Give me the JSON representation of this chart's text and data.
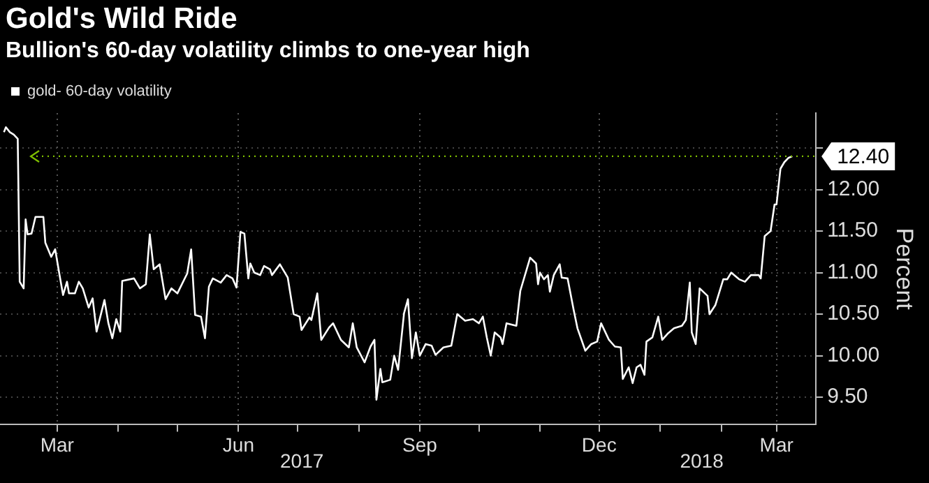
{
  "chart_data": {
    "type": "line",
    "title": "Gold's Wild Ride",
    "subtitle": "Bullion's 60-day volatility climbs to one-year high",
    "ylabel": "Percent",
    "x": [
      "2017-02-02",
      "2017-02-03",
      "2017-02-05",
      "2017-02-07",
      "2017-02-09",
      "2017-02-10",
      "2017-02-12",
      "2017-02-13",
      "2017-02-14",
      "2017-02-16",
      "2017-02-18",
      "2017-02-22",
      "2017-02-23",
      "2017-02-26",
      "2017-02-28",
      "2017-03-02",
      "2017-03-04",
      "2017-03-06",
      "2017-03-07",
      "2017-03-10",
      "2017-03-12",
      "2017-03-14",
      "2017-03-17",
      "2017-03-19",
      "2017-03-21",
      "2017-03-25",
      "2017-03-27",
      "2017-03-29",
      "2017-03-31",
      "2017-04-02",
      "2017-04-03",
      "2017-04-09",
      "2017-04-12",
      "2017-04-15",
      "2017-04-17",
      "2017-04-19",
      "2017-04-22",
      "2017-04-25",
      "2017-04-28",
      "2017-05-01",
      "2017-05-06",
      "2017-05-08",
      "2017-05-10",
      "2017-05-13",
      "2017-05-15",
      "2017-05-17",
      "2017-05-19",
      "2017-05-23",
      "2017-05-26",
      "2017-05-29",
      "2017-05-31",
      "2017-06-02",
      "2017-06-04",
      "2017-06-06",
      "2017-06-07",
      "2017-06-09",
      "2017-06-12",
      "2017-06-14",
      "2017-06-17",
      "2017-06-18",
      "2017-06-22",
      "2017-06-26",
      "2017-06-29",
      "2017-07-02",
      "2017-07-03",
      "2017-07-07",
      "2017-07-08",
      "2017-07-11",
      "2017-07-13",
      "2017-07-17",
      "2017-07-19",
      "2017-07-23",
      "2017-07-27",
      "2017-07-29",
      "2017-07-31",
      "2017-08-04",
      "2017-08-07",
      "2017-08-09",
      "2017-08-10",
      "2017-08-12",
      "2017-08-13",
      "2017-08-17",
      "2017-08-19",
      "2017-08-21",
      "2017-08-24",
      "2017-08-26",
      "2017-08-28",
      "2017-08-30",
      "2017-09-01",
      "2017-09-04",
      "2017-09-07",
      "2017-09-09",
      "2017-09-13",
      "2017-09-17",
      "2017-09-20",
      "2017-09-24",
      "2017-09-28",
      "2017-10-01",
      "2017-10-03",
      "2017-10-05",
      "2017-10-07",
      "2017-10-09",
      "2017-10-12",
      "2017-10-13",
      "2017-10-15",
      "2017-10-20",
      "2017-10-22",
      "2017-10-27",
      "2017-10-30",
      "2017-10-31",
      "2017-11-01",
      "2017-11-03",
      "2017-11-05",
      "2017-11-06",
      "2017-11-08",
      "2017-11-11",
      "2017-11-12",
      "2017-11-15",
      "2017-11-18",
      "2017-11-20",
      "2017-11-24",
      "2017-11-27",
      "2017-11-30",
      "2017-12-02",
      "2017-12-06",
      "2017-12-09",
      "2017-12-12",
      "2017-12-13",
      "2017-12-16",
      "2017-12-18",
      "2017-12-20",
      "2017-12-22",
      "2017-12-24",
      "2017-12-25",
      "2017-12-28",
      "2017-12-31",
      "2018-01-02",
      "2018-01-05",
      "2018-01-08",
      "2018-01-12",
      "2018-01-14",
      "2018-01-16",
      "2018-01-17",
      "2018-01-19",
      "2018-01-21",
      "2018-01-25",
      "2018-01-26",
      "2018-01-29",
      "2018-02-02",
      "2018-02-04",
      "2018-02-06",
      "2018-02-10",
      "2018-02-13",
      "2018-02-16",
      "2018-02-20",
      "2018-02-21",
      "2018-02-23",
      "2018-02-26",
      "2018-02-28",
      "2018-03-01",
      "2018-03-03",
      "2018-03-05",
      "2018-03-07",
      "2018-03-09"
    ],
    "series": [
      {
        "name": "gold- 60-day volatility",
        "color": "#ffffff",
        "values": [
          12.69,
          12.75,
          12.69,
          12.66,
          12.61,
          10.89,
          10.81,
          11.64,
          11.46,
          11.47,
          11.67,
          11.67,
          11.36,
          11.19,
          11.28,
          11.0,
          10.73,
          10.89,
          10.75,
          10.75,
          10.89,
          10.81,
          10.58,
          10.69,
          10.29,
          10.67,
          10.39,
          10.21,
          10.44,
          10.29,
          10.9,
          10.93,
          10.81,
          10.86,
          11.46,
          11.04,
          11.1,
          10.68,
          10.81,
          10.75,
          10.99,
          11.28,
          10.49,
          10.47,
          10.21,
          10.83,
          10.93,
          10.88,
          10.97,
          10.93,
          10.82,
          11.49,
          11.47,
          10.93,
          11.11,
          11.0,
          10.97,
          11.08,
          11.04,
          10.97,
          11.1,
          10.94,
          10.5,
          10.47,
          10.31,
          10.46,
          10.43,
          10.75,
          10.19,
          10.34,
          10.39,
          10.19,
          10.1,
          10.39,
          10.1,
          9.92,
          10.11,
          10.19,
          9.47,
          9.84,
          9.68,
          9.71,
          10.0,
          9.83,
          10.51,
          10.68,
          9.97,
          10.28,
          10.0,
          10.14,
          10.12,
          10.01,
          10.1,
          10.12,
          10.5,
          10.42,
          10.44,
          10.39,
          10.47,
          10.22,
          10.0,
          10.28,
          10.22,
          10.14,
          10.39,
          10.36,
          10.78,
          11.18,
          11.11,
          10.86,
          11.0,
          10.92,
          10.97,
          10.77,
          10.97,
          11.1,
          10.94,
          10.93,
          10.56,
          10.33,
          10.06,
          10.14,
          10.17,
          10.39,
          10.19,
          10.11,
          10.1,
          9.72,
          9.86,
          9.67,
          9.86,
          9.89,
          9.77,
          10.17,
          10.22,
          10.47,
          10.19,
          10.27,
          10.33,
          10.36,
          10.43,
          10.88,
          10.28,
          10.14,
          10.81,
          10.72,
          10.5,
          10.61,
          10.92,
          10.92,
          11.0,
          10.92,
          10.89,
          10.97,
          10.97,
          10.93,
          11.44,
          11.5,
          11.82,
          11.82,
          12.25,
          12.33,
          12.38,
          12.4
        ]
      }
    ],
    "xlim": [
      "2017-01-31",
      "2018-03-21"
    ],
    "xticks": [
      {
        "value": "2017-03-01",
        "label": "Mar"
      },
      {
        "value": "2017-04-01",
        "label": null
      },
      {
        "value": "2017-05-01",
        "label": null
      },
      {
        "value": "2017-06-01",
        "label": "Jun"
      },
      {
        "value": "2017-07-01",
        "label": null
      },
      {
        "value": "2017-08-01",
        "label": null
      },
      {
        "value": "2017-09-01",
        "label": "Sep"
      },
      {
        "value": "2017-10-01",
        "label": null
      },
      {
        "value": "2017-11-01",
        "label": null
      },
      {
        "value": "2017-12-01",
        "label": "Dec"
      },
      {
        "value": "2018-01-01",
        "label": null
      },
      {
        "value": "2018-02-01",
        "label": null
      },
      {
        "value": "2018-03-01",
        "label": "Mar"
      }
    ],
    "ylim": [
      9.17,
      12.92
    ],
    "yticks": [
      {
        "value": 9.5,
        "label": "9.50"
      },
      {
        "value": 10,
        "label": "10.00"
      },
      {
        "value": 10.5,
        "label": "10.50"
      },
      {
        "value": 11,
        "label": "11.00"
      },
      {
        "value": 11.5,
        "label": "11.50"
      },
      {
        "value": 12,
        "label": "12.00"
      },
      {
        "value": 12.5,
        "label": null
      }
    ],
    "ref_lines": [
      {
        "axis": "y",
        "value": 12.4,
        "label": "12.40",
        "color": "#7fbf00",
        "line_style": "dotted"
      }
    ],
    "annotations": [
      "2017",
      "2018"
    ],
    "grid": true,
    "legend": "top left",
    "marker": "none",
    "line_style": "solid"
  }
}
